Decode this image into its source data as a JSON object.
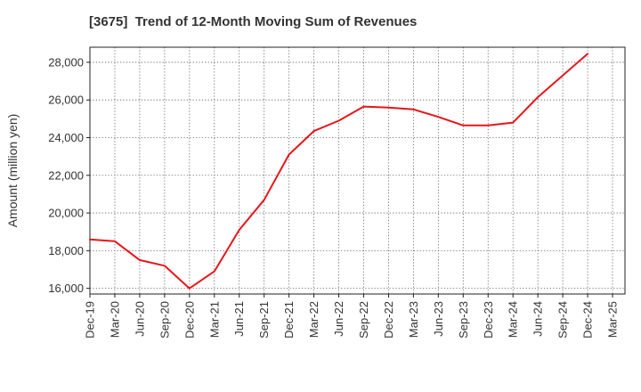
{
  "chart_data": {
    "type": "line",
    "title": "[3675]  Trend of 12-Month Moving Sum of Revenues",
    "xlabel": "",
    "ylabel": "Amount (million yen)",
    "ylim": [
      15700,
      28800
    ],
    "yticks": [
      16000,
      18000,
      20000,
      22000,
      24000,
      26000,
      28000
    ],
    "ytick_labels": [
      "16,000",
      "18,000",
      "20,000",
      "22,000",
      "24,000",
      "26,000",
      "28,000"
    ],
    "categories": [
      "Dec-19",
      "Mar-20",
      "Jun-20",
      "Sep-20",
      "Dec-20",
      "Mar-21",
      "Jun-21",
      "Sep-21",
      "Dec-21",
      "Mar-22",
      "Jun-22",
      "Sep-22",
      "Dec-22",
      "Mar-23",
      "Jun-23",
      "Sep-23",
      "Dec-23",
      "Mar-24",
      "Jun-24",
      "Sep-24",
      "Dec-24",
      "Mar-25"
    ],
    "series": [
      {
        "color": "#e8151b",
        "values": [
          18600,
          18500,
          17500,
          17200,
          16000,
          16900,
          19100,
          20700,
          23100,
          24350,
          24900,
          25650,
          25600,
          25500,
          25100,
          24650,
          24650,
          24800,
          26150,
          27300,
          28450,
          null
        ]
      }
    ],
    "grid": true,
    "grid_style": "dotted",
    "legend": "none"
  }
}
